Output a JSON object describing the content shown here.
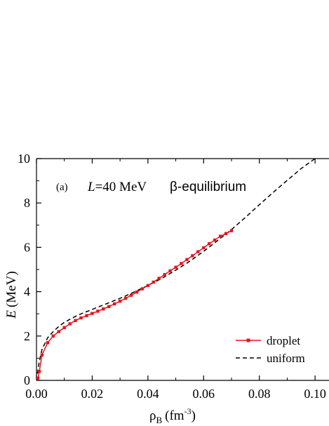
{
  "chart_data": {
    "type": "line",
    "title": "",
    "xlabel": "ρ",
    "xlabel_sub": "B",
    "xlabel_unit": "(fm",
    "xlabel_sup": "-3",
    "xlabel_close": ")",
    "ylabel": "E",
    "ylabel_unit": "(MeV)",
    "xlim": [
      0,
      0.105
    ],
    "ylim": [
      0,
      10
    ],
    "xticks": [
      "0.00",
      "0.02",
      "0.04",
      "0.06",
      "0.08",
      "0.10"
    ],
    "yticks": [
      "0",
      "2",
      "4",
      "6",
      "8",
      "10"
    ],
    "xtick_values": [
      0,
      0.02,
      0.04,
      0.06,
      0.08,
      0.1
    ],
    "ytick_values": [
      0,
      2,
      4,
      6,
      8,
      10
    ],
    "annotation": {
      "panel": "(a)",
      "L": "L",
      "L_value": "=40 MeV",
      "condition": "β-equilibrium"
    },
    "legend_position": "bottom-right",
    "grid": false,
    "series": [
      {
        "name": "droplet",
        "color": "#e8141c",
        "style": "solid-with-square-markers",
        "x": [
          0.0005,
          0.001,
          0.002,
          0.004,
          0.006,
          0.008,
          0.01,
          0.012,
          0.014,
          0.016,
          0.018,
          0.02,
          0.022,
          0.024,
          0.026,
          0.028,
          0.03,
          0.032,
          0.034,
          0.036,
          0.038,
          0.04,
          0.042,
          0.044,
          0.046,
          0.048,
          0.05,
          0.052,
          0.054,
          0.056,
          0.058,
          0.06,
          0.062,
          0.064,
          0.066,
          0.068,
          0.07
        ],
        "y": [
          0.1,
          0.4,
          1.15,
          1.7,
          2.0,
          2.2,
          2.38,
          2.55,
          2.7,
          2.82,
          2.92,
          3.02,
          3.12,
          3.22,
          3.33,
          3.45,
          3.57,
          3.7,
          3.84,
          3.98,
          4.13,
          4.28,
          4.43,
          4.6,
          4.77,
          4.94,
          5.1,
          5.27,
          5.45,
          5.62,
          5.8,
          5.98,
          6.16,
          6.33,
          6.5,
          6.62,
          6.75
        ]
      },
      {
        "name": "uniform",
        "color": "#000000",
        "style": "dashed",
        "x": [
          0.0003,
          0.001,
          0.002,
          0.004,
          0.006,
          0.008,
          0.01,
          0.015,
          0.02,
          0.025,
          0.03,
          0.035,
          0.04,
          0.045,
          0.05,
          0.055,
          0.06,
          0.065,
          0.07,
          0.075,
          0.08,
          0.085,
          0.09,
          0.095,
          0.1,
          0.104
        ],
        "y": [
          0.3,
          0.85,
          1.4,
          1.92,
          2.2,
          2.43,
          2.62,
          2.95,
          3.2,
          3.45,
          3.7,
          3.98,
          4.28,
          4.6,
          4.97,
          5.37,
          5.82,
          6.3,
          6.8,
          7.35,
          7.92,
          8.48,
          9.02,
          9.55,
          10.0,
          10.3
        ]
      }
    ]
  }
}
